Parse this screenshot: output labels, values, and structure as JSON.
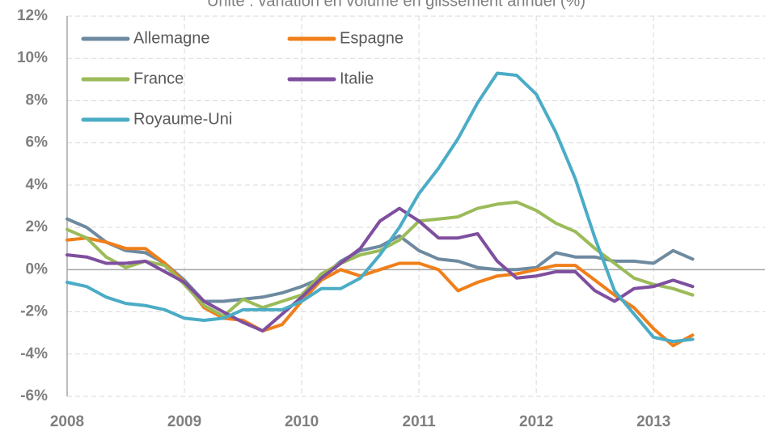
{
  "chart_data": {
    "type": "line",
    "title": "Unité : variation en volume en glissement annuel (%)",
    "x": [
      2008,
      2008.167,
      2008.333,
      2008.5,
      2008.667,
      2008.833,
      2009,
      2009.167,
      2009.333,
      2009.5,
      2009.667,
      2009.833,
      2010,
      2010.167,
      2010.333,
      2010.5,
      2010.667,
      2010.833,
      2011,
      2011.167,
      2011.333,
      2011.5,
      2011.667,
      2011.833,
      2012,
      2012.167,
      2012.333,
      2012.5,
      2012.667,
      2012.833,
      2013,
      2013.167,
      2013.333
    ],
    "series": [
      {
        "name": "Allemagne",
        "color": "#6d8aa0",
        "values": [
          2.4,
          2.0,
          1.3,
          0.9,
          0.8,
          0.3,
          -0.5,
          -1.5,
          -1.5,
          -1.4,
          -1.3,
          -1.1,
          -0.8,
          -0.4,
          0.4,
          0.9,
          1.1,
          1.6,
          0.9,
          0.5,
          0.4,
          0.1,
          0.0,
          0.0,
          0.1,
          0.8,
          0.6,
          0.6,
          0.4,
          0.4,
          0.3,
          0.9,
          0.5
        ]
      },
      {
        "name": "Espagne",
        "color": "#f07f1a",
        "values": [
          1.4,
          1.5,
          1.3,
          1.0,
          1.0,
          0.3,
          -0.6,
          -1.8,
          -2.3,
          -2.4,
          -2.9,
          -2.6,
          -1.5,
          -0.5,
          0.0,
          -0.3,
          0.0,
          0.3,
          0.3,
          0.0,
          -1.0,
          -0.6,
          -0.3,
          -0.2,
          0.0,
          0.2,
          0.2,
          -0.5,
          -1.2,
          -1.8,
          -2.8,
          -3.6,
          -3.1
        ]
      },
      {
        "name": "France",
        "color": "#9bbb59",
        "values": [
          1.9,
          1.5,
          0.6,
          0.1,
          0.4,
          0.2,
          -0.7,
          -1.7,
          -2.2,
          -1.4,
          -1.8,
          -1.5,
          -1.2,
          -0.2,
          0.3,
          0.7,
          0.9,
          1.4,
          2.3,
          2.4,
          2.5,
          2.9,
          3.1,
          3.2,
          2.8,
          2.2,
          1.8,
          1.0,
          0.3,
          -0.4,
          -0.7,
          -0.9,
          -1.2
        ]
      },
      {
        "name": "Italie",
        "color": "#7f4f9f",
        "values": [
          0.7,
          0.6,
          0.3,
          0.3,
          0.4,
          -0.1,
          -0.6,
          -1.5,
          -2.0,
          -2.5,
          -2.9,
          -2.1,
          -1.3,
          -0.4,
          0.3,
          1.0,
          2.3,
          2.9,
          2.3,
          1.5,
          1.5,
          1.7,
          0.4,
          -0.4,
          -0.3,
          -0.1,
          -0.1,
          -1.0,
          -1.5,
          -0.9,
          -0.8,
          -0.5,
          -0.8
        ]
      },
      {
        "name": "Royaume-Uni",
        "color": "#4bacc6",
        "values": [
          -0.6,
          -0.8,
          -1.3,
          -1.6,
          -1.7,
          -1.9,
          -2.3,
          -2.4,
          -2.3,
          -1.9,
          -1.9,
          -1.9,
          -1.5,
          -0.9,
          -0.9,
          -0.4,
          0.7,
          2.0,
          3.6,
          4.8,
          6.2,
          7.9,
          9.3,
          9.2,
          8.3,
          6.5,
          4.3,
          1.5,
          -1.0,
          -2.1,
          -3.2,
          -3.4,
          -3.3
        ]
      }
    ],
    "xlim": [
      2008,
      2013.95
    ],
    "xticks": [
      2008,
      2009,
      2010,
      2011,
      2012,
      2013
    ],
    "ylim": [
      -6,
      12
    ],
    "yticks": [
      {
        "value": -6,
        "label": "-6%"
      },
      {
        "value": -4,
        "label": "-4%"
      },
      {
        "value": -2,
        "label": "-2%"
      },
      {
        "value": 0,
        "label": "0%"
      },
      {
        "value": 2,
        "label": "2%"
      },
      {
        "value": 4,
        "label": "4%"
      },
      {
        "value": 6,
        "label": "6%"
      },
      {
        "value": 8,
        "label": "8%"
      },
      {
        "value": 10,
        "label": "10%"
      },
      {
        "value": 12,
        "label": "12%"
      }
    ],
    "grid": true,
    "legend": "top-left"
  }
}
